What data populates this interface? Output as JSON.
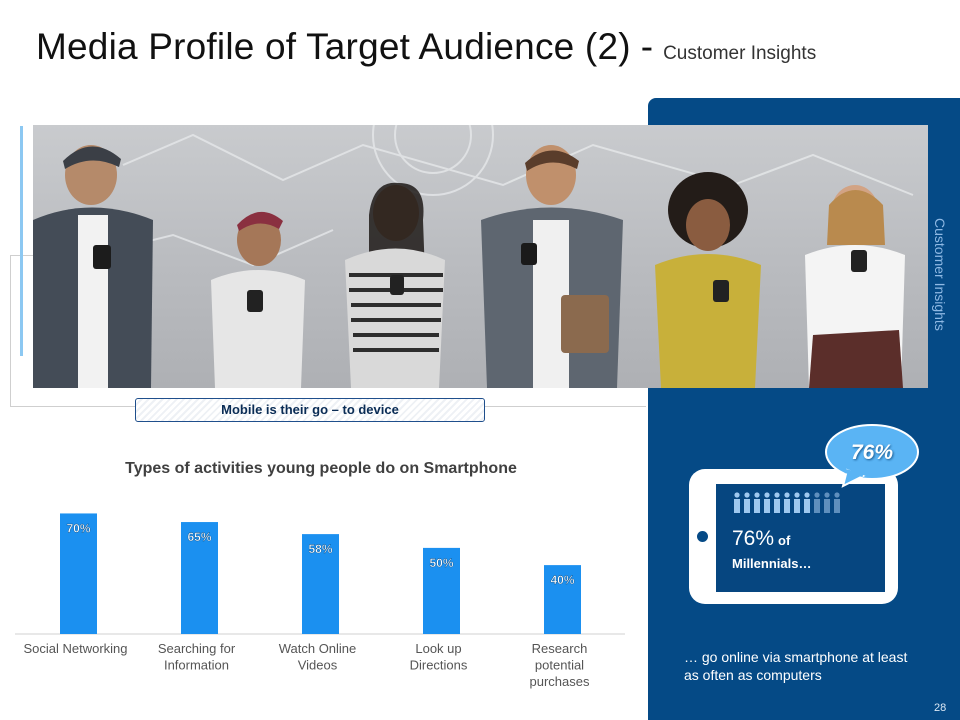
{
  "header": {
    "title": "Media Profile of Target Audience (2)",
    "separator": "-",
    "subtitle": "Customer Insights"
  },
  "side_label": "Customer Insights",
  "caption": "Mobile is their go – to device",
  "stats": {
    "bubble": "76%",
    "big_value": "76%",
    "big_of": "of",
    "subject": "Millennials…",
    "description": "… go online via smartphone at least as often as computers"
  },
  "page_number": "28",
  "colors": {
    "panel": "#054a86",
    "bar": "#1b90f0",
    "bubble": "#5ab4f4",
    "photo_bg": "#c0c2c5"
  },
  "chart_data": {
    "type": "bar",
    "title": "Types of activities young people do on Smartphone",
    "categories": [
      "Social Networking",
      "Searching for Information",
      "Watch Online Videos",
      "Look up Directions",
      "Research potential purchases"
    ],
    "category_lines": [
      [
        "Social Networking"
      ],
      [
        "Searching for",
        "Information"
      ],
      [
        "Watch Online",
        "Videos"
      ],
      [
        "Look up",
        "Directions"
      ],
      [
        "Research",
        "potential",
        "purchases"
      ]
    ],
    "values": [
      70,
      65,
      58,
      50,
      40
    ],
    "labels": [
      "70%",
      "65%",
      "58%",
      "50%",
      "40%"
    ],
    "ylim": [
      0,
      72
    ],
    "grid": false,
    "legend": "none"
  }
}
